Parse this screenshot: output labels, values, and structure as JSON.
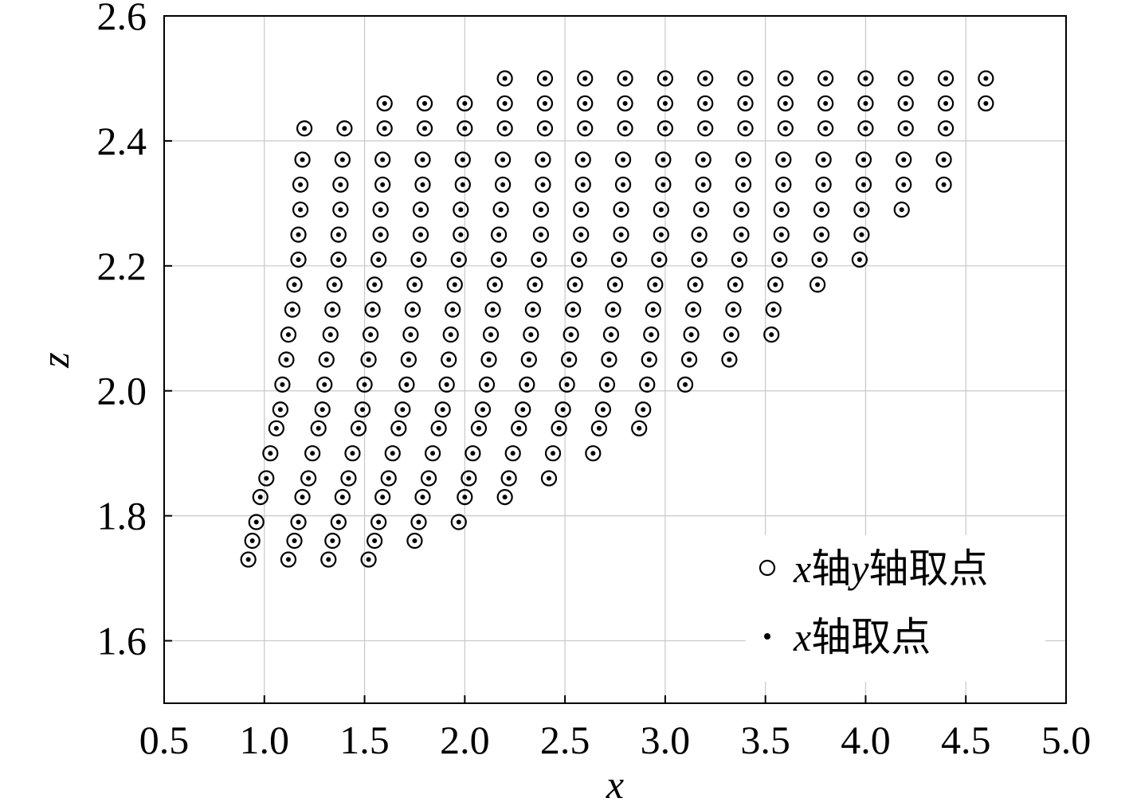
{
  "chart_data": {
    "type": "scatter",
    "title": "",
    "xlabel": "x",
    "ylabel": "z",
    "xlim": [
      0.5,
      5.0
    ],
    "ylim": [
      1.5,
      2.6
    ],
    "x_ticks": [
      "0.5",
      "1.0",
      "1.5",
      "2.0",
      "2.5",
      "3.0",
      "3.5",
      "4.0",
      "4.5",
      "5.0"
    ],
    "y_ticks": [
      "1.6",
      "1.8",
      "2.0",
      "2.2",
      "2.4",
      "2.6"
    ],
    "grid": true,
    "legend_position": "bottom-right",
    "legend": [
      {
        "label_parts": [
          {
            "text": "x",
            "italic": true
          },
          {
            "text": "轴",
            "italic": false
          },
          {
            "text": "y",
            "italic": true
          },
          {
            "text": "轴取点",
            "italic": false
          }
        ],
        "marker": "circle"
      },
      {
        "label_parts": [
          {
            "text": "x",
            "italic": true
          },
          {
            "text": "轴取点",
            "italic": false
          }
        ],
        "marker": "dot"
      }
    ],
    "row_z": [
      1.73,
      1.76,
      1.79,
      1.83,
      1.86,
      1.9,
      1.94,
      1.97,
      2.01,
      2.05,
      2.09,
      2.13,
      2.17,
      2.21,
      2.25,
      2.29,
      2.33,
      2.37,
      2.42,
      2.46,
      2.5
    ],
    "series": [
      {
        "name": "x轴y轴取点",
        "marker": "circle",
        "x_by_row": [
          [
            0.92,
            1.12,
            1.32,
            1.52
          ],
          [
            0.94,
            1.15,
            1.34,
            1.55,
            1.75
          ],
          [
            0.96,
            1.17,
            1.37,
            1.57,
            1.77,
            1.97
          ],
          [
            0.98,
            1.19,
            1.39,
            1.59,
            1.79,
            2.0,
            2.2
          ],
          [
            1.01,
            1.22,
            1.42,
            1.62,
            1.82,
            2.02,
            2.22,
            2.42
          ],
          [
            1.03,
            1.24,
            1.44,
            1.64,
            1.84,
            2.04,
            2.24,
            2.44,
            2.64
          ],
          [
            1.06,
            1.27,
            1.47,
            1.67,
            1.87,
            2.07,
            2.27,
            2.47,
            2.67,
            2.87
          ],
          [
            1.08,
            1.29,
            1.49,
            1.69,
            1.89,
            2.09,
            2.29,
            2.49,
            2.69,
            2.89
          ],
          [
            1.09,
            1.3,
            1.5,
            1.71,
            1.91,
            2.11,
            2.31,
            2.51,
            2.71,
            2.91,
            3.1
          ],
          [
            1.11,
            1.31,
            1.52,
            1.72,
            1.92,
            2.12,
            2.32,
            2.52,
            2.72,
            2.92,
            3.12,
            3.32
          ],
          [
            1.12,
            1.33,
            1.53,
            1.73,
            1.93,
            2.13,
            2.33,
            2.53,
            2.73,
            2.93,
            3.13,
            3.33,
            3.53
          ],
          [
            1.14,
            1.34,
            1.54,
            1.74,
            1.94,
            2.14,
            2.34,
            2.54,
            2.74,
            2.94,
            3.14,
            3.34,
            3.54
          ],
          [
            1.15,
            1.35,
            1.55,
            1.75,
            1.95,
            2.15,
            2.35,
            2.55,
            2.75,
            2.95,
            3.15,
            3.35,
            3.55,
            3.76
          ],
          [
            1.17,
            1.37,
            1.57,
            1.77,
            1.97,
            2.17,
            2.37,
            2.57,
            2.77,
            2.97,
            3.17,
            3.37,
            3.57,
            3.77,
            3.97
          ],
          [
            1.17,
            1.37,
            1.58,
            1.78,
            1.98,
            2.17,
            2.38,
            2.58,
            2.78,
            2.98,
            3.17,
            3.38,
            3.58,
            3.78,
            3.98
          ],
          [
            1.18,
            1.38,
            1.58,
            1.78,
            1.98,
            2.18,
            2.38,
            2.58,
            2.78,
            2.98,
            3.18,
            3.38,
            3.58,
            3.78,
            3.98,
            4.18
          ],
          [
            1.18,
            1.38,
            1.59,
            1.79,
            1.99,
            2.19,
            2.39,
            2.59,
            2.79,
            2.99,
            3.19,
            3.39,
            3.59,
            3.79,
            3.99,
            4.19,
            4.39
          ],
          [
            1.19,
            1.39,
            1.59,
            1.79,
            1.99,
            2.19,
            2.39,
            2.59,
            2.79,
            2.99,
            3.19,
            3.39,
            3.59,
            3.79,
            3.99,
            4.19,
            4.39
          ],
          [
            1.2,
            1.4,
            1.6,
            1.8,
            2.0,
            2.2,
            2.4,
            2.6,
            2.8,
            3.0,
            3.2,
            3.4,
            3.6,
            3.8,
            4.0,
            4.2,
            4.4
          ],
          [
            1.6,
            1.8,
            2.0,
            2.2,
            2.4,
            2.6,
            2.8,
            3.0,
            3.2,
            3.4,
            3.6,
            3.8,
            4.0,
            4.2,
            4.4,
            4.6
          ],
          [
            2.2,
            2.4,
            2.6,
            2.8,
            3.0,
            3.2,
            3.4,
            3.6,
            3.8,
            4.0,
            4.2,
            4.4,
            4.6
          ]
        ]
      },
      {
        "name": "x轴取点",
        "marker": "dot",
        "same_points_as": "x轴y轴取点"
      }
    ]
  }
}
